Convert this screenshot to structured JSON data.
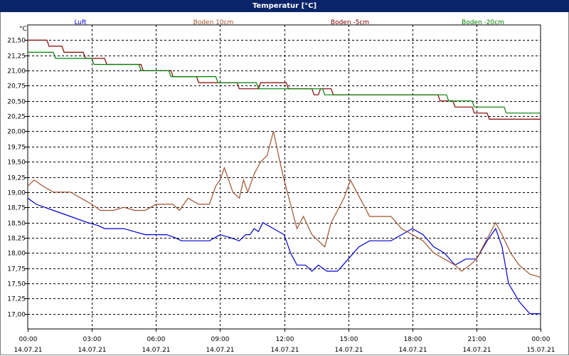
{
  "window": {
    "title": "Temperatur [°C]"
  },
  "chart_data": {
    "type": "line",
    "title": "Temperatur [°C]",
    "ylabel": "°C",
    "ylim": [
      16.75,
      21.75
    ],
    "xlim": [
      0,
      24
    ],
    "grid": true,
    "legend_position": "top",
    "y_ticks": [
      "17,00",
      "17,25",
      "17,50",
      "17,75",
      "18,00",
      "18,25",
      "18,50",
      "18,75",
      "19,00",
      "19,25",
      "19,50",
      "19,75",
      "20,00",
      "20,25",
      "20,50",
      "20,75",
      "21,00",
      "21,25",
      "21,50"
    ],
    "y_tick_values": [
      17.0,
      17.25,
      17.5,
      17.75,
      18.0,
      18.25,
      18.5,
      18.75,
      19.0,
      19.25,
      19.5,
      19.75,
      20.0,
      20.25,
      20.5,
      20.75,
      21.0,
      21.25,
      21.5
    ],
    "x_ticks": [
      {
        "x": 0,
        "time": "00:00",
        "date": "14.07.21"
      },
      {
        "x": 3,
        "time": "03:00",
        "date": "14.07.21"
      },
      {
        "x": 6,
        "time": "06:00",
        "date": "14.07.21"
      },
      {
        "x": 9,
        "time": "09:00",
        "date": "14.07.21"
      },
      {
        "x": 12,
        "time": "12:00",
        "date": "14.07.21"
      },
      {
        "x": 15,
        "time": "15:00",
        "date": "14.07.21"
      },
      {
        "x": 18,
        "time": "18:00",
        "date": "14.07.21"
      },
      {
        "x": 21,
        "time": "21:00",
        "date": "14.07.21"
      },
      {
        "x": 24,
        "time": "00:00",
        "date": "15.07.21"
      }
    ],
    "series": [
      {
        "name": "Luft",
        "color": "#0000cc",
        "points": [
          [
            0,
            18.9
          ],
          [
            0.4,
            18.8
          ],
          [
            0.8,
            18.75
          ],
          [
            1.2,
            18.7
          ],
          [
            2.0,
            18.6
          ],
          [
            2.8,
            18.5
          ],
          [
            3.3,
            18.45
          ],
          [
            3.6,
            18.4
          ],
          [
            4.5,
            18.4
          ],
          [
            5.0,
            18.35
          ],
          [
            5.5,
            18.3
          ],
          [
            6.5,
            18.3
          ],
          [
            6.9,
            18.25
          ],
          [
            7.2,
            18.2
          ],
          [
            8.5,
            18.2
          ],
          [
            9.0,
            18.3
          ],
          [
            9.5,
            18.25
          ],
          [
            9.9,
            18.2
          ],
          [
            10.2,
            18.3
          ],
          [
            10.4,
            18.3
          ],
          [
            10.6,
            18.4
          ],
          [
            10.8,
            18.35
          ],
          [
            11.0,
            18.5
          ],
          [
            11.5,
            18.4
          ],
          [
            12.0,
            18.3
          ],
          [
            12.3,
            18.0
          ],
          [
            12.6,
            17.8
          ],
          [
            13.0,
            17.8
          ],
          [
            13.3,
            17.7
          ],
          [
            13.6,
            17.8
          ],
          [
            14.0,
            17.7
          ],
          [
            14.5,
            17.7
          ],
          [
            15.0,
            17.9
          ],
          [
            15.5,
            18.1
          ],
          [
            16.0,
            18.2
          ],
          [
            16.5,
            18.2
          ],
          [
            17.0,
            18.2
          ],
          [
            17.5,
            18.3
          ],
          [
            18.0,
            18.4
          ],
          [
            18.5,
            18.3
          ],
          [
            19.0,
            18.1
          ],
          [
            19.5,
            18.0
          ],
          [
            20.0,
            17.8
          ],
          [
            20.5,
            17.9
          ],
          [
            21.0,
            17.9
          ],
          [
            21.5,
            18.2
          ],
          [
            21.9,
            18.4
          ],
          [
            22.2,
            18.1
          ],
          [
            22.5,
            17.5
          ],
          [
            23.0,
            17.2
          ],
          [
            23.5,
            17.0
          ],
          [
            24.0,
            17.0
          ]
        ]
      },
      {
        "name": "Boden 10cm",
        "color": "#a0522d",
        "points": [
          [
            0,
            19.1
          ],
          [
            0.3,
            19.2
          ],
          [
            0.7,
            19.1
          ],
          [
            1.2,
            19.0
          ],
          [
            2.0,
            19.0
          ],
          [
            2.5,
            18.9
          ],
          [
            3.0,
            18.8
          ],
          [
            3.4,
            18.7
          ],
          [
            4.0,
            18.7
          ],
          [
            4.5,
            18.75
          ],
          [
            5.0,
            18.7
          ],
          [
            5.5,
            18.7
          ],
          [
            6.0,
            18.8
          ],
          [
            6.8,
            18.8
          ],
          [
            7.1,
            18.7
          ],
          [
            7.5,
            18.9
          ],
          [
            8.0,
            18.8
          ],
          [
            8.5,
            18.8
          ],
          [
            8.8,
            19.1
          ],
          [
            9.0,
            19.2
          ],
          [
            9.2,
            19.4
          ],
          [
            9.6,
            19.0
          ],
          [
            9.9,
            18.9
          ],
          [
            10.1,
            19.2
          ],
          [
            10.3,
            19.0
          ],
          [
            10.6,
            19.3
          ],
          [
            10.9,
            19.5
          ],
          [
            11.2,
            19.6
          ],
          [
            11.5,
            20.0
          ],
          [
            11.8,
            19.5
          ],
          [
            12.0,
            19.2
          ],
          [
            12.3,
            18.8
          ],
          [
            12.6,
            18.4
          ],
          [
            12.9,
            18.6
          ],
          [
            13.3,
            18.3
          ],
          [
            13.6,
            18.2
          ],
          [
            13.9,
            18.1
          ],
          [
            14.2,
            18.5
          ],
          [
            14.5,
            18.7
          ],
          [
            14.8,
            18.9
          ],
          [
            15.1,
            19.2
          ],
          [
            15.4,
            19.0
          ],
          [
            15.7,
            18.8
          ],
          [
            16.0,
            18.6
          ],
          [
            16.5,
            18.6
          ],
          [
            17.0,
            18.6
          ],
          [
            17.5,
            18.4
          ],
          [
            18.0,
            18.3
          ],
          [
            18.5,
            18.2
          ],
          [
            19.0,
            18.0
          ],
          [
            19.5,
            17.9
          ],
          [
            20.0,
            17.8
          ],
          [
            20.3,
            17.7
          ],
          [
            20.7,
            17.8
          ],
          [
            21.0,
            17.9
          ],
          [
            21.3,
            18.1
          ],
          [
            21.6,
            18.3
          ],
          [
            21.9,
            18.5
          ],
          [
            22.2,
            18.3
          ],
          [
            22.6,
            18.0
          ],
          [
            23.0,
            17.8
          ],
          [
            23.5,
            17.65
          ],
          [
            24.0,
            17.6
          ]
        ]
      },
      {
        "name": "Boden -5cm",
        "color": "#800000",
        "points": [
          [
            0,
            21.5
          ],
          [
            0.9,
            21.5
          ],
          [
            1.0,
            21.4
          ],
          [
            1.6,
            21.4
          ],
          [
            1.7,
            21.3
          ],
          [
            2.6,
            21.3
          ],
          [
            2.7,
            21.2
          ],
          [
            3.6,
            21.2
          ],
          [
            3.7,
            21.1
          ],
          [
            5.3,
            21.1
          ],
          [
            5.4,
            21.0
          ],
          [
            6.7,
            21.0
          ],
          [
            6.8,
            20.9
          ],
          [
            7.9,
            20.9
          ],
          [
            8.0,
            20.8
          ],
          [
            9.8,
            20.8
          ],
          [
            9.9,
            20.7
          ],
          [
            10.8,
            20.7
          ],
          [
            10.9,
            20.8
          ],
          [
            12.1,
            20.8
          ],
          [
            12.2,
            20.7
          ],
          [
            13.3,
            20.7
          ],
          [
            13.4,
            20.6
          ],
          [
            13.6,
            20.6
          ],
          [
            13.7,
            20.7
          ],
          [
            14.2,
            20.7
          ],
          [
            14.3,
            20.6
          ],
          [
            19.2,
            20.6
          ],
          [
            19.3,
            20.5
          ],
          [
            19.9,
            20.5
          ],
          [
            20.0,
            20.4
          ],
          [
            20.8,
            20.4
          ],
          [
            20.9,
            20.3
          ],
          [
            21.5,
            20.3
          ],
          [
            21.6,
            20.2
          ],
          [
            24.0,
            20.2
          ]
        ]
      },
      {
        "name": "Boden -20cm",
        "color": "#008000",
        "points": [
          [
            0,
            21.3
          ],
          [
            1.2,
            21.3
          ],
          [
            1.3,
            21.2
          ],
          [
            3.0,
            21.2
          ],
          [
            3.1,
            21.1
          ],
          [
            5.2,
            21.1
          ],
          [
            5.3,
            21.0
          ],
          [
            6.6,
            21.0
          ],
          [
            6.7,
            20.9
          ],
          [
            8.8,
            20.9
          ],
          [
            8.9,
            20.8
          ],
          [
            10.7,
            20.8
          ],
          [
            10.8,
            20.7
          ],
          [
            13.8,
            20.7
          ],
          [
            13.9,
            20.6
          ],
          [
            19.6,
            20.6
          ],
          [
            19.7,
            20.5
          ],
          [
            20.8,
            20.5
          ],
          [
            20.9,
            20.4
          ],
          [
            22.3,
            20.4
          ],
          [
            22.4,
            20.3
          ],
          [
            24.0,
            20.3
          ]
        ]
      }
    ]
  }
}
